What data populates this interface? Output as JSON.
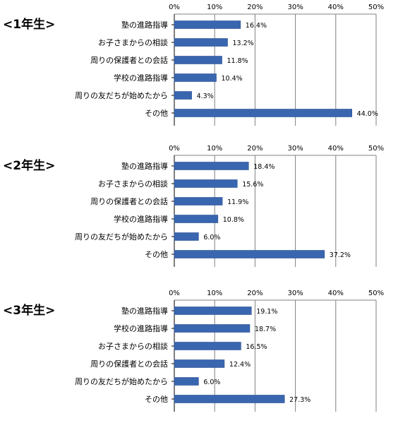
{
  "colors": {
    "bar": "#3a66b0",
    "bar_edge": "#2b4f8f",
    "axis": "#000000",
    "grid": "#808080"
  },
  "chart_data": [
    {
      "type": "bar",
      "orientation": "horizontal",
      "title": "<1年生>",
      "categories": [
        "塾の進路指導",
        "お子さまからの相談",
        "周りの保護者との会話",
        "学校の進路指導",
        "周りの友だちが始めたから",
        "その他"
      ],
      "values": [
        16.4,
        13.2,
        11.8,
        10.4,
        4.3,
        44.0
      ],
      "data_labels": [
        "16.4%",
        "13.2%",
        "11.8%",
        "10.4%",
        "4.3%",
        "44.0%"
      ],
      "x_ticks": [
        "0%",
        "10%",
        "20%",
        "30%",
        "40%",
        "50%"
      ],
      "xlim": [
        0,
        50
      ],
      "grid": true,
      "legend": "none"
    },
    {
      "type": "bar",
      "orientation": "horizontal",
      "title": "<2年生>",
      "categories": [
        "塾の進路指導",
        "お子さまからの相談",
        "周りの保護者との会話",
        "学校の進路指導",
        "周りの友だちが始めたから",
        "その他"
      ],
      "values": [
        18.4,
        15.6,
        11.9,
        10.8,
        6.0,
        37.2
      ],
      "data_labels": [
        "18.4%",
        "15.6%",
        "11.9%",
        "10.8%",
        "6.0%",
        "37.2%"
      ],
      "x_ticks": [
        "0%",
        "10%",
        "20%",
        "30%",
        "40%",
        "50%"
      ],
      "xlim": [
        0,
        50
      ],
      "grid": true,
      "legend": "none"
    },
    {
      "type": "bar",
      "orientation": "horizontal",
      "title": "<3年生>",
      "categories": [
        "塾の進路指導",
        "学校の進路指導",
        "お子さまからの相談",
        "周りの保護者との会話",
        "周りの友だちが始めたから",
        "その他"
      ],
      "values": [
        19.1,
        18.7,
        16.5,
        12.4,
        6.0,
        27.3
      ],
      "data_labels": [
        "19.1%",
        "18.7%",
        "16.5%",
        "12.4%",
        "6.0%",
        "27.3%"
      ],
      "x_ticks": [
        "0%",
        "10%",
        "20%",
        "30%",
        "40%",
        "50%"
      ],
      "xlim": [
        0,
        50
      ],
      "grid": true,
      "legend": "none"
    }
  ]
}
